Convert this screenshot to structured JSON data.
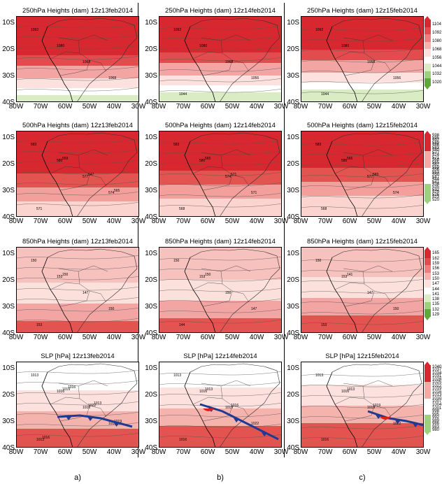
{
  "rows": [
    {
      "id": "250",
      "titles": [
        "250hPa Heights (dam)  12z13feb2014",
        "250hPa Heights (dam)  12z14feb2014",
        "250hPa Heights (dam)  12z15feb2014"
      ],
      "colorbar": {
        "labels": [
          "1104",
          "1092",
          "1080",
          "1068",
          "1056",
          "1044",
          "1032",
          "1020"
        ],
        "colors": [
          "#d7282f",
          "#e34c4f",
          "#ef7d7d",
          "#f6b1ae",
          "#fde1de",
          "#ffffff",
          "#d9ecc4",
          "#9ed17e",
          "#5fa93c"
        ]
      }
    },
    {
      "id": "500",
      "titles": [
        "500hPa Heights (dam)  12z13feb2014",
        "500hPa Heights (dam)  12z14feb2014",
        "500hPa Heights (dam)  12z15feb2014"
      ],
      "colorbar": {
        "labels": [
          "598",
          "595",
          "592",
          "589",
          "586",
          "583",
          "580",
          "577",
          "574",
          "571",
          "568",
          "565",
          "562",
          "559",
          "556",
          "553",
          "550",
          "547",
          "544",
          "541",
          "538",
          "535",
          "532",
          "529",
          "526",
          "523",
          "520"
        ],
        "colors": [
          "#d7282f",
          "#f5aaa6",
          "#ffffff",
          "#9ed17e"
        ]
      }
    },
    {
      "id": "850",
      "titles": [
        "850hPa Heights (dam)  12z13feb2014",
        "850hPa Heights (dam)  12z14feb2014",
        "850hPa Heights (dam)  12z15feb2014"
      ],
      "colorbar": {
        "labels": [
          "165",
          "162",
          "159",
          "156",
          "153",
          "150",
          "147",
          "144",
          "141",
          "138",
          "135",
          "132",
          "129"
        ],
        "colors": [
          "#d7282f",
          "#e34c4f",
          "#ef7d7d",
          "#f6b1ae",
          "#fde1de",
          "#ffffff",
          "#d9ecc4",
          "#9ed17e",
          "#5fa93c"
        ]
      }
    },
    {
      "id": "slp",
      "titles": [
        "SLP [hPa]  12z13feb2014",
        "SLP [hPa]  12z14feb2014",
        "SLP [hPa]  12z15feb2014"
      ],
      "colorbar": {
        "labels": [
          "1040",
          "1037",
          "1034",
          "1031",
          "1028",
          "1025",
          "1022",
          "1019",
          "1016",
          "1013",
          "1010",
          "1007",
          "1004",
          "1001",
          "998",
          "995",
          "992",
          "989",
          "986",
          "983",
          "980"
        ],
        "colors": [
          "#d7282f",
          "#f5aaa6",
          "#ffffff",
          "#9ed17e"
        ]
      }
    }
  ],
  "axes": {
    "ylabels": [
      "10S",
      "20S",
      "30S",
      "40S"
    ],
    "xlabels": [
      "80W",
      "70W",
      "60W",
      "50W",
      "40W",
      "30W"
    ]
  },
  "columns": [
    "a)",
    "b)",
    "c)"
  ],
  "contour_labels": {
    "250": [
      [
        "1092",
        "1080",
        "1068",
        "1068"
      ],
      [
        "1092",
        "1080",
        "1068",
        "1056",
        "1044"
      ],
      [
        "1092",
        "1080",
        "1068",
        "1056",
        "1044"
      ]
    ],
    "500": [
      [
        "583",
        "580",
        "577",
        "574",
        "571",
        "559",
        "547",
        "565"
      ],
      [
        "583",
        "580",
        "574",
        "571",
        "568",
        "565",
        "571"
      ],
      [
        "583",
        "580",
        "577",
        "574",
        "568",
        "565",
        "583"
      ]
    ],
    "850": [
      [
        "150",
        "153",
        "147",
        "150",
        "153",
        "150"
      ],
      [
        "150",
        "153",
        "150",
        "147",
        "144",
        "150"
      ],
      [
        "150",
        "153",
        "147",
        "150",
        "153",
        "141"
      ]
    ],
    "slp": [
      [
        "1013",
        "1016",
        "1016",
        "1010",
        "1013",
        "1019",
        "1022",
        "1019",
        "1016",
        "1016",
        "1013"
      ],
      [
        "1013",
        "1016",
        "1019",
        "1022",
        "1016",
        "1013",
        "1016"
      ],
      [
        "1013",
        "1016",
        "1019",
        "1022",
        "1016",
        "1013",
        "1019"
      ]
    ]
  }
}
